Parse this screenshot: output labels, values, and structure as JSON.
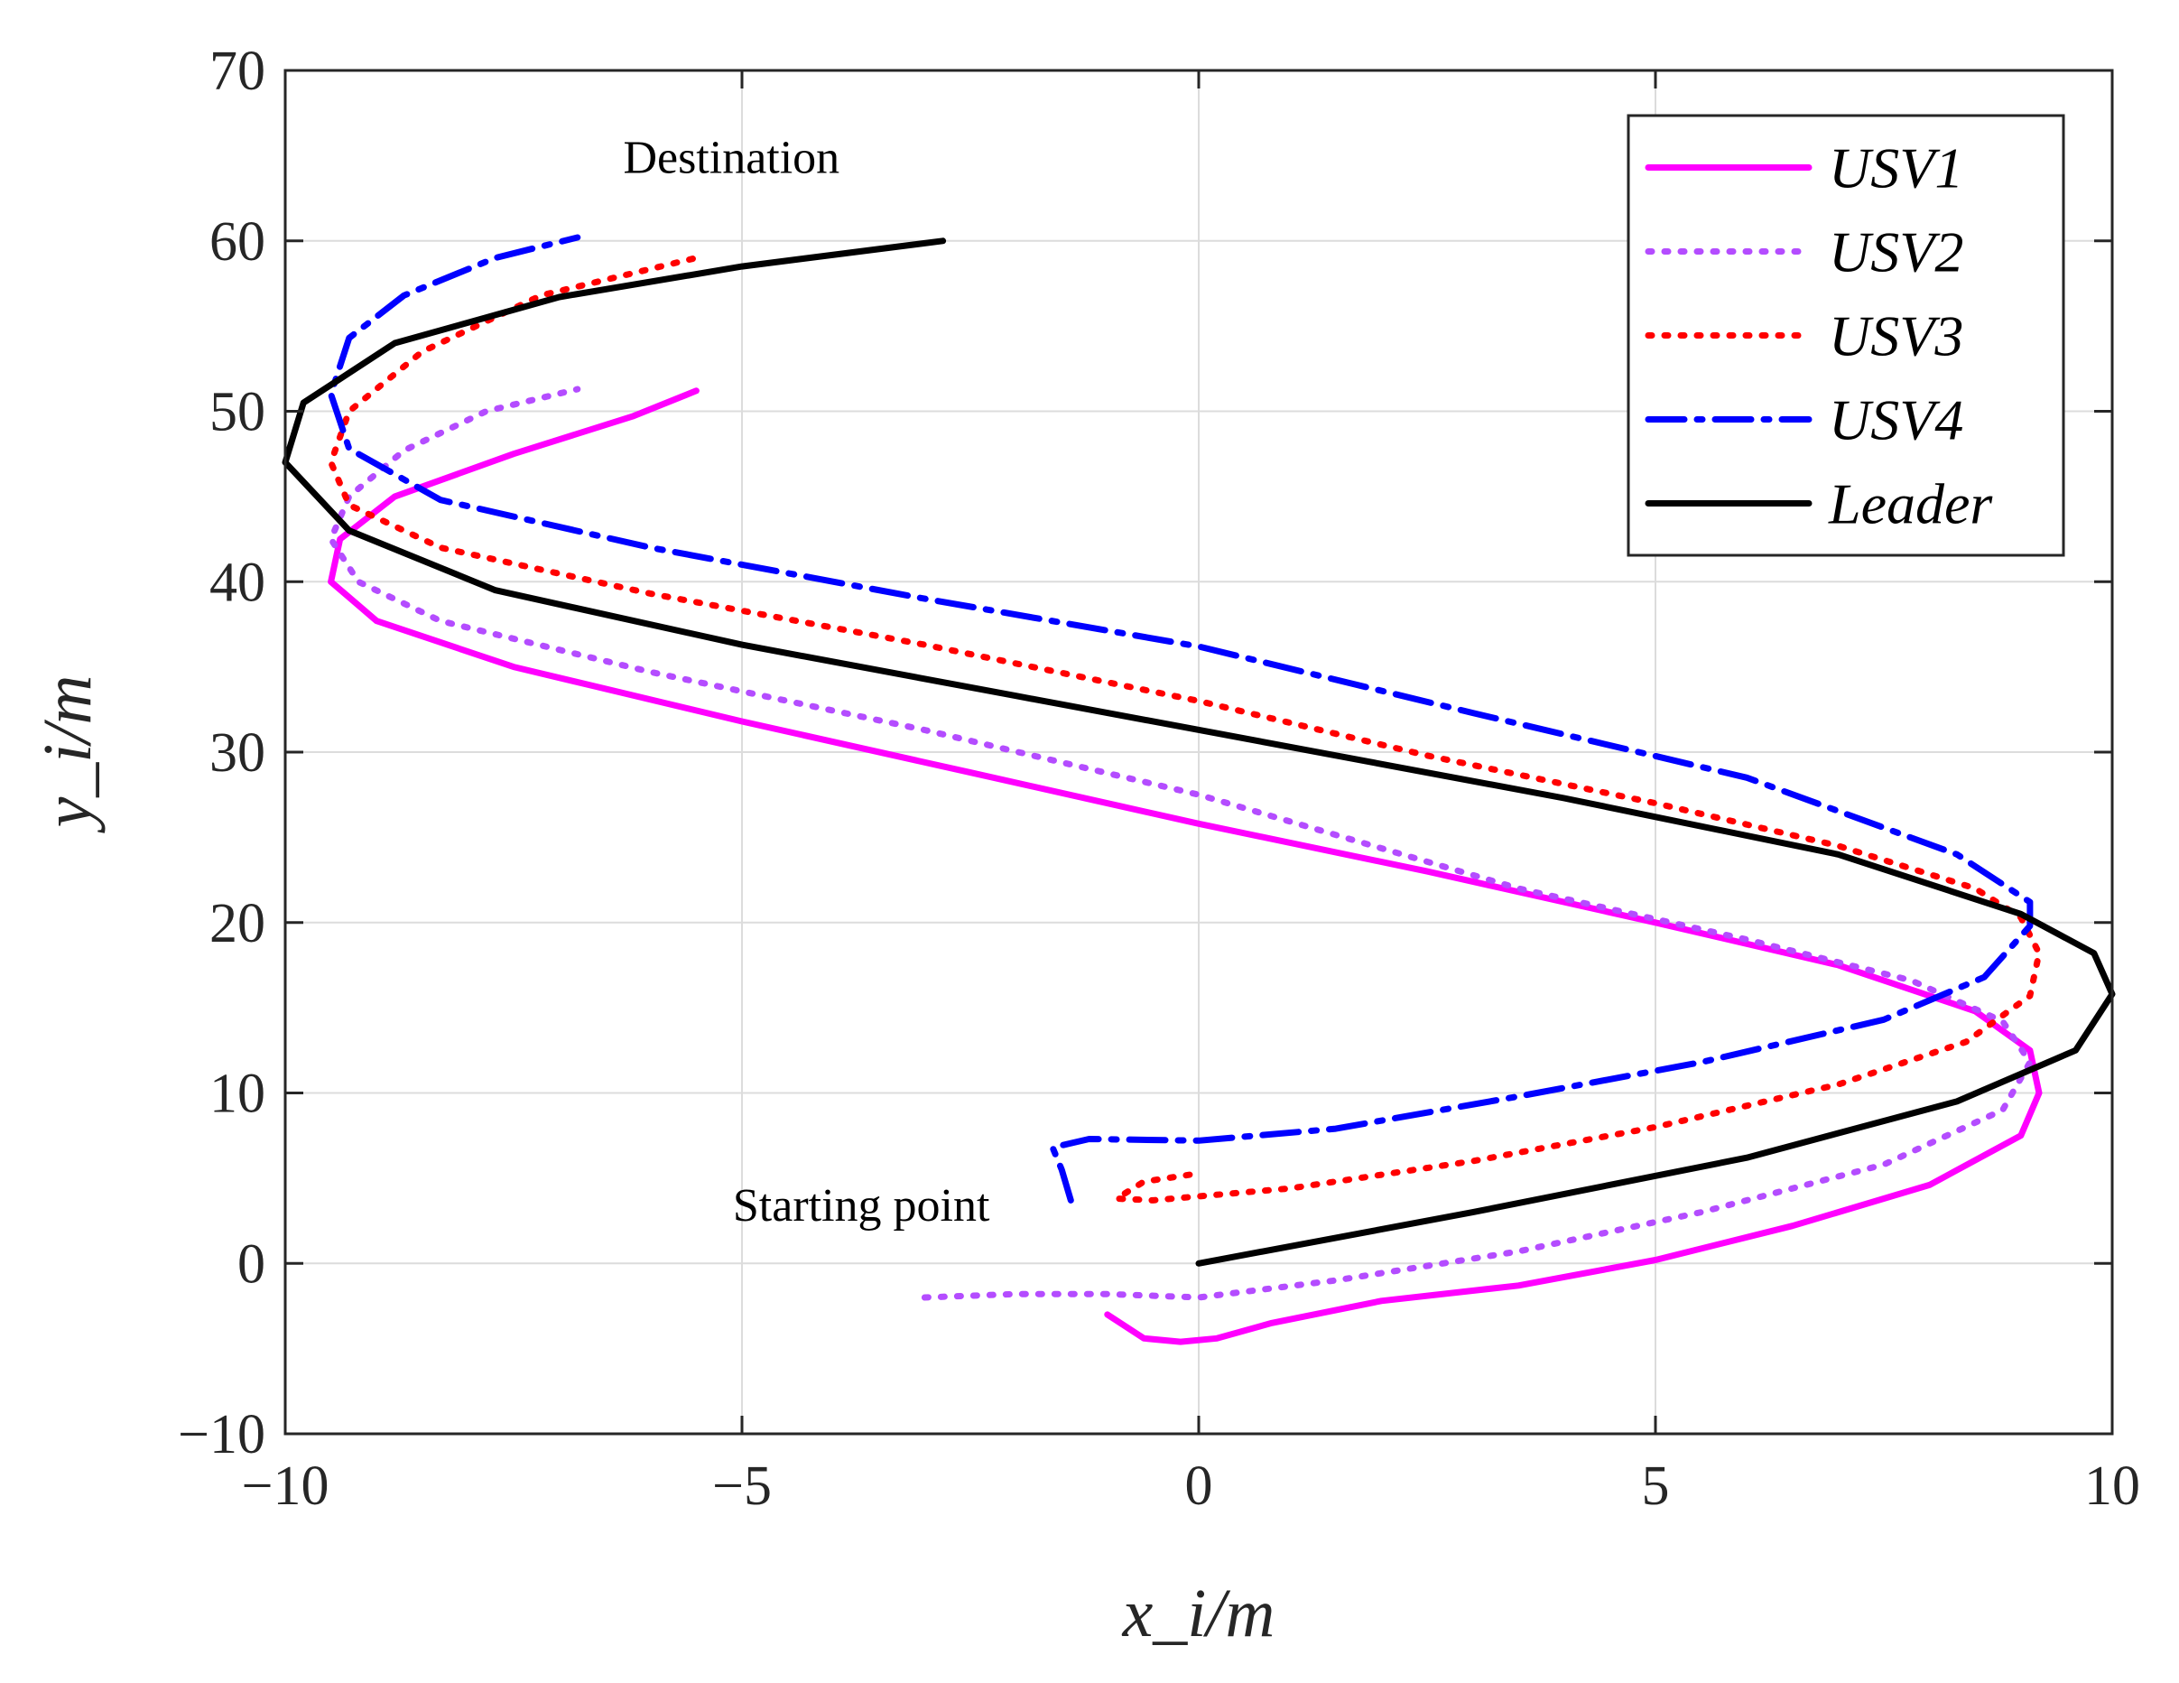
{
  "chart_data": {
    "type": "line",
    "title": "",
    "xlabel": "x_i/m",
    "ylabel": "y_i/m",
    "xlim": [
      -10,
      10
    ],
    "ylim": [
      -10,
      70
    ],
    "xticks": [
      -10,
      -5,
      0,
      5,
      10
    ],
    "yticks": [
      -10,
      0,
      10,
      20,
      30,
      40,
      50,
      60,
      70
    ],
    "xtick_labels": [
      "−10",
      "−5",
      "0",
      "5",
      "10"
    ],
    "ytick_labels": [
      "−10",
      "0",
      "10",
      "20",
      "30",
      "40",
      "50",
      "60",
      "70"
    ],
    "grid": true,
    "legend_position": "top-right",
    "annotations": [
      {
        "text": "Destination",
        "x": -6.3,
        "y": 64
      },
      {
        "text": "Starting point",
        "x": -5.1,
        "y": 2.5
      }
    ],
    "series": [
      {
        "name": "USV1",
        "color": "#ff00ff",
        "style": "solid",
        "x": [
          -1.0,
          -0.6,
          -0.2,
          0.2,
          0.8,
          2.0,
          3.5,
          5.0,
          6.5,
          8.0,
          9.0,
          9.2,
          9.1,
          8.5,
          7.0,
          5.0,
          2.5,
          0.0,
          -2.5,
          -5.0,
          -7.5,
          -9.0,
          -9.5,
          -9.4,
          -8.8,
          -7.5,
          -6.2,
          -5.5
        ],
        "y": [
          -3.0,
          -4.4,
          -4.6,
          -4.4,
          -3.5,
          -2.2,
          -1.3,
          0.2,
          2.2,
          4.6,
          7.5,
          10.0,
          12.5,
          14.8,
          17.5,
          20.0,
          23.0,
          25.8,
          28.8,
          31.8,
          35.0,
          37.7,
          40.0,
          42.5,
          45.0,
          47.5,
          49.7,
          51.2
        ]
      },
      {
        "name": "USV2",
        "color": "#b44cff",
        "style": "dotted",
        "x": [
          -3.0,
          -2.0,
          -1.0,
          0.0,
          1.5,
          3.5,
          5.5,
          7.5,
          8.8,
          9.1,
          8.8,
          7.8,
          6.0,
          3.5,
          0.0,
          -3.0,
          -6.0,
          -8.3,
          -9.2,
          -9.5,
          -9.3,
          -8.7,
          -7.8,
          -6.8
        ],
        "y": [
          -2.0,
          -1.8,
          -1.8,
          -2.0,
          -1.0,
          0.7,
          3.0,
          5.8,
          9.0,
          11.8,
          14.2,
          16.6,
          19.0,
          22.0,
          27.5,
          31.3,
          34.7,
          37.7,
          40.0,
          42.5,
          45.0,
          47.7,
          50.0,
          51.3
        ]
      },
      {
        "name": "USV3",
        "color": "#ff0000",
        "style": "dotted",
        "x": [
          -0.1,
          -0.6,
          -0.9,
          -0.5,
          1.0,
          3.0,
          5.0,
          7.0,
          8.4,
          9.1,
          9.2,
          9.0,
          8.5,
          7.0,
          5.0,
          2.5,
          0.0,
          -3.0,
          -6.0,
          -8.3,
          -9.3,
          -9.5,
          -9.3,
          -8.5,
          -7.2,
          -5.5
        ],
        "y": [
          5.2,
          4.8,
          3.8,
          3.7,
          4.4,
          6.0,
          8.0,
          10.5,
          13.0,
          15.7,
          18.2,
          20.3,
          22.0,
          24.5,
          27.0,
          29.8,
          33.0,
          36.3,
          39.3,
          42.0,
          44.5,
          47.0,
          50.0,
          53.5,
          56.8,
          59.0
        ]
      },
      {
        "name": "USV4",
        "color": "#0000ff",
        "style": "dashdot",
        "x": [
          -1.4,
          -1.5,
          -1.6,
          -1.2,
          0.0,
          1.5,
          3.5,
          5.5,
          7.5,
          8.6,
          9.1,
          9.1,
          8.3,
          6.0,
          3.0,
          0.0,
          -3.0,
          -6.0,
          -8.3,
          -9.3,
          -9.5,
          -9.3,
          -8.7,
          -7.7,
          -6.8
        ],
        "y": [
          3.7,
          5.5,
          6.8,
          7.3,
          7.2,
          7.9,
          9.8,
          11.8,
          14.3,
          16.8,
          19.8,
          21.2,
          24.0,
          28.5,
          32.3,
          36.2,
          39.0,
          42.0,
          44.8,
          47.8,
          51.0,
          54.3,
          56.8,
          59.0,
          60.2
        ]
      },
      {
        "name": "Leader",
        "color": "#000000",
        "style": "solid",
        "x": [
          0.0,
          3.0,
          6.0,
          8.3,
          9.6,
          10.0,
          9.8,
          9.0,
          7.0,
          4.0,
          1.0,
          -2.0,
          -5.0,
          -7.7,
          -9.3,
          -10.0,
          -9.8,
          -8.8,
          -7.0,
          -5.0,
          -2.8
        ],
        "y": [
          0.0,
          3.0,
          6.2,
          9.5,
          12.5,
          15.8,
          18.2,
          20.5,
          24.0,
          27.3,
          30.3,
          33.3,
          36.3,
          39.5,
          43.0,
          47.0,
          50.5,
          54.0,
          56.7,
          58.5,
          60.0
        ]
      }
    ]
  }
}
